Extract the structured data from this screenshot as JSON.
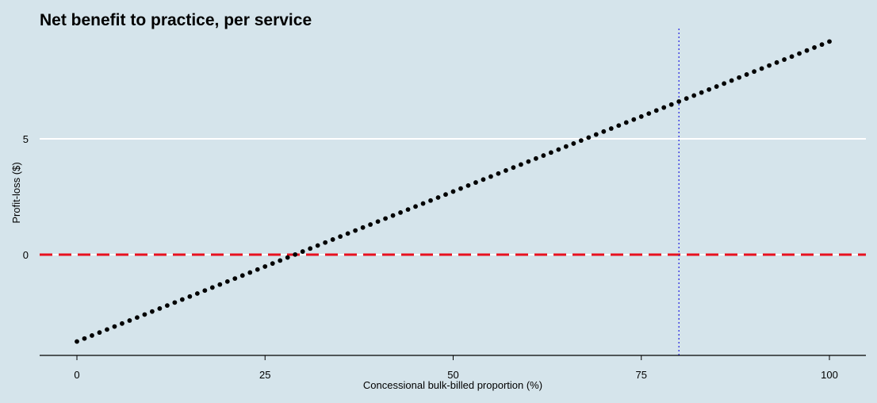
{
  "chart_data": {
    "type": "scatter",
    "title": "Net benefit to practice, per service",
    "xlabel": "Concessional bulk-billed proportion (%)",
    "ylabel": "Profit-loss ($)",
    "xlim": [
      -2,
      102
    ],
    "ylim": [
      -4.5,
      10
    ],
    "x_ticks": [
      0,
      25,
      50,
      75,
      100
    ],
    "x_tick_labels": [
      "0",
      "25",
      "50",
      "75",
      "100"
    ],
    "y_ticks": [
      0,
      5
    ],
    "y_tick_labels": [
      "0",
      "5"
    ],
    "grid": "horizontal",
    "series": [
      {
        "x_start": 0,
        "x_end": 100,
        "x_step": 1,
        "y_start": -3.75,
        "y_end": 9.2
      }
    ],
    "reference_lines": [
      {
        "orientation": "horizontal",
        "value": 0,
        "style": "dashed",
        "color": "#e8111f"
      },
      {
        "orientation": "vertical",
        "value": 80,
        "style": "dotted",
        "color": "#2a2ae0"
      }
    ],
    "colors": {
      "background": "#d5e4eb",
      "gridline": "#ffffff",
      "points": "#000000",
      "axis": "#000000"
    }
  }
}
